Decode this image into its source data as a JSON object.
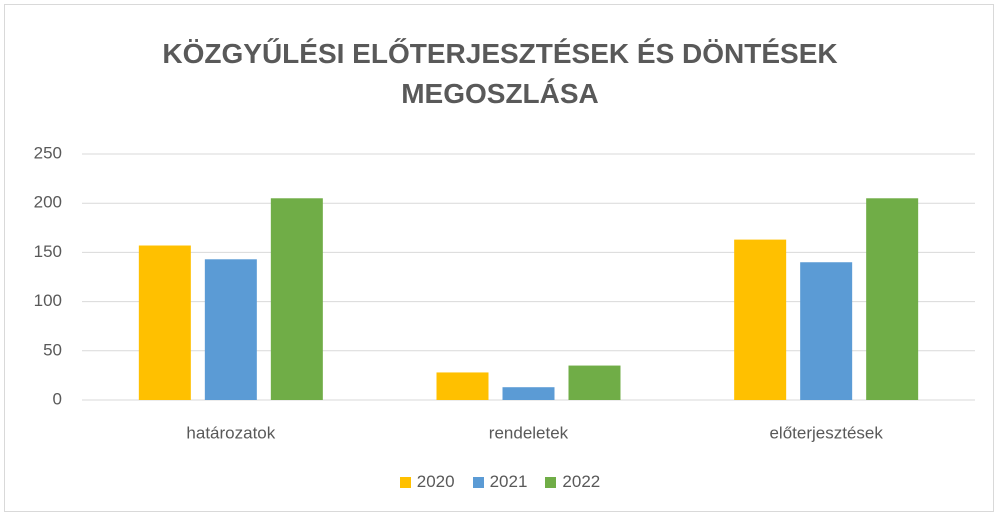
{
  "chart_data": {
    "type": "bar",
    "title": "KÖZGYŰLÉSI ELŐTERJESZTÉSEK ÉS DÖNTÉSEK MEGOSZLÁSA",
    "categories": [
      "határozatok",
      "rendeletek",
      "előterjesztések"
    ],
    "series": [
      {
        "name": "2020",
        "color": "#ffc000",
        "values": [
          157,
          28,
          163
        ]
      },
      {
        "name": "2021",
        "color": "#5b9bd5",
        "values": [
          143,
          13,
          140
        ]
      },
      {
        "name": "2022",
        "color": "#70ad47",
        "values": [
          205,
          35,
          205
        ]
      }
    ],
    "ylim": [
      0,
      250
    ],
    "yticks": [
      0,
      50,
      100,
      150,
      200,
      250
    ],
    "grid": true,
    "legend": "bottom"
  }
}
